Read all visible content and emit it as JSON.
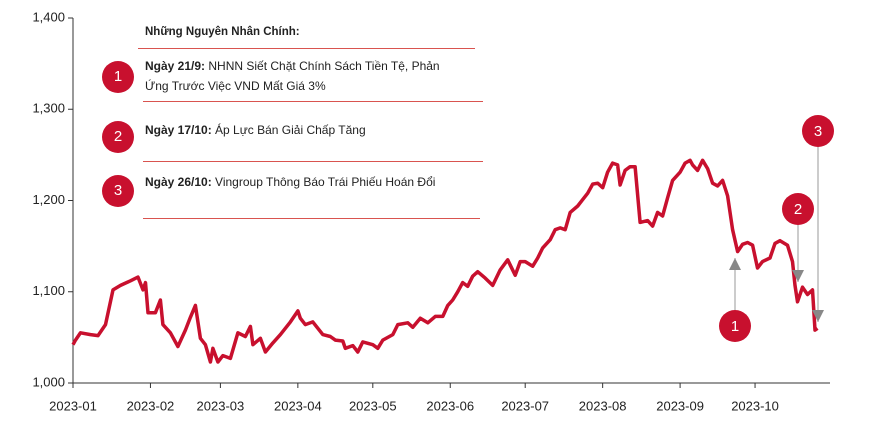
{
  "chart_data": {
    "type": "line",
    "notes_title": "Những Nguyên Nhân Chính:",
    "notes": [
      {
        "number": "1",
        "date": "Ngày 21/9:",
        "text": "NHNN Siết Chặt Chính Sách Tiền Tệ, Phản Ứng Trước Việc VND Mất Giá 3%"
      },
      {
        "number": "2",
        "date": "Ngày 17/10:",
        "text": "Áp Lực Bán Giải Chấp Tăng"
      },
      {
        "number": "3",
        "date": "Ngày 26/10:",
        "text": "Vingroup Thông Báo Trái Phiếu Hoán Đổi"
      }
    ],
    "markers": [
      "1",
      "2",
      "3"
    ],
    "x": [
      0,
      1,
      3,
      7,
      10,
      13,
      16,
      19,
      23,
      26,
      28,
      29,
      30,
      33,
      35,
      36,
      39,
      42,
      45,
      47,
      49,
      51,
      53,
      55,
      56,
      58,
      60,
      63,
      66,
      69,
      71,
      72,
      75,
      77,
      80,
      83,
      87,
      90,
      91,
      93,
      96,
      100,
      103,
      105,
      108,
      109,
      112,
      114,
      116,
      120,
      122,
      124,
      128,
      130,
      134,
      136,
      139,
      142,
      145,
      148,
      150,
      152,
      154,
      156,
      158,
      160,
      162,
      165,
      168,
      171,
      174,
      177,
      179,
      181,
      184,
      186,
      188,
      191,
      193,
      195,
      197,
      199,
      202,
      204,
      206,
      208,
      210,
      212,
      214,
      216,
      218,
      219,
      221,
      223,
      225,
      227,
      230,
      232,
      234,
      236,
      238,
      240,
      243,
      245,
      247,
      248,
      250,
      252,
      254,
      256,
      258,
      260,
      262,
      264,
      266,
      268,
      270,
      272,
      274,
      276,
      279,
      281,
      283,
      286,
      288,
      289,
      290,
      292,
      294,
      296,
      297,
      298
    ],
    "series": [
      {
        "color": "#c8102e",
        "values": [
          1042,
          1047,
          1055,
          1053,
          1052,
          1064,
          1102,
          1107,
          1112,
          1116,
          1102,
          1110,
          1077,
          1077,
          1091,
          1064,
          1055,
          1040,
          1058,
          1072,
          1085,
          1049,
          1042,
          1023,
          1038,
          1023,
          1030,
          1027,
          1055,
          1051,
          1062,
          1042,
          1049,
          1034,
          1044,
          1053,
          1067,
          1079,
          1071,
          1064,
          1067,
          1053,
          1051,
          1047,
          1046,
          1038,
          1041,
          1034,
          1045,
          1042,
          1038,
          1047,
          1053,
          1064,
          1066,
          1061,
          1071,
          1066,
          1073,
          1073,
          1085,
          1091,
          1100,
          1110,
          1106,
          1117,
          1122,
          1115,
          1107,
          1124,
          1135,
          1118,
          1133,
          1133,
          1128,
          1137,
          1148,
          1157,
          1168,
          1170,
          1168,
          1187,
          1194,
          1201,
          1208,
          1218,
          1219,
          1214,
          1231,
          1241,
          1239,
          1217,
          1233,
          1237,
          1237,
          1176,
          1178,
          1172,
          1187,
          1183,
          1203,
          1222,
          1231,
          1241,
          1244,
          1239,
          1233,
          1244,
          1235,
          1219,
          1216,
          1222,
          1205,
          1168,
          1144,
          1152,
          1154,
          1151,
          1126,
          1133,
          1137,
          1153,
          1156,
          1151,
          1133,
          1107,
          1089,
          1105,
          1097,
          1102,
          1058,
          1060
        ]
      }
    ],
    "xlim": [
      0,
      303
    ],
    "xticks": [
      {
        "value": 0,
        "label": "2023-01"
      },
      {
        "value": 31,
        "label": "2023-02"
      },
      {
        "value": 59,
        "label": "2023-03"
      },
      {
        "value": 90,
        "label": "2023-04"
      },
      {
        "value": 120,
        "label": "2023-05"
      },
      {
        "value": 151,
        "label": "2023-06"
      },
      {
        "value": 181,
        "label": "2023-07"
      },
      {
        "value": 212,
        "label": "2023-08"
      },
      {
        "value": 243,
        "label": "2023-09"
      },
      {
        "value": 273,
        "label": "2023-10"
      }
    ],
    "ylim": [
      1000,
      1400
    ],
    "yticks": [
      {
        "value": 1000,
        "label": "1,000"
      },
      {
        "value": 1100,
        "label": "1,100"
      },
      {
        "value": 1200,
        "label": "1,200"
      },
      {
        "value": 1300,
        "label": "1,300"
      },
      {
        "value": 1400,
        "label": "1,400"
      }
    ]
  }
}
